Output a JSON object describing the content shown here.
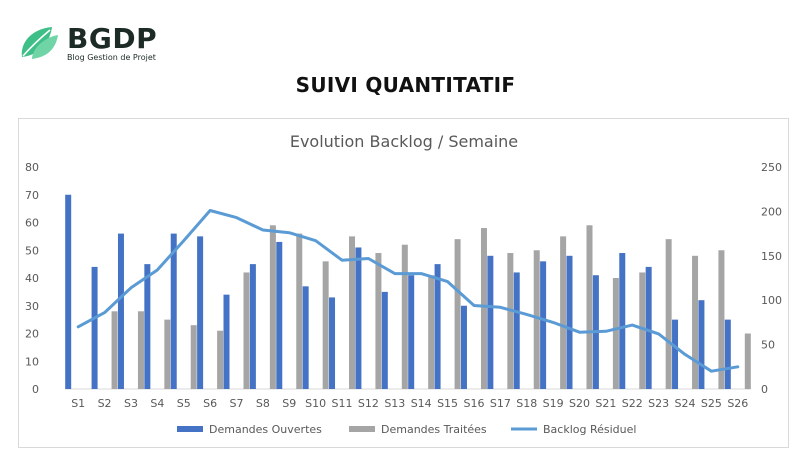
{
  "header": {
    "brand_name": "BGDP",
    "brand_tagline": "Blog Gestion de Projet",
    "brand_color": "#3fbf88",
    "logo_icon": "leaf-icon",
    "page_title": "SUIVI QUANTITATIF"
  },
  "chart_data": {
    "type": "bar",
    "title": "Evolution Backlog / Semaine",
    "categories": [
      "S1",
      "S2",
      "S3",
      "S4",
      "S5",
      "S6",
      "S7",
      "S8",
      "S9",
      "S10",
      "S11",
      "S12",
      "S13",
      "S14",
      "S15",
      "S16",
      "S17",
      "S18",
      "S19",
      "S20",
      "S21",
      "S22",
      "S23",
      "S24",
      "S25",
      "S26"
    ],
    "ylim": [
      0,
      80
    ],
    "yticks": [
      "0",
      "10",
      "20",
      "30",
      "40",
      "50",
      "60",
      "70",
      "80"
    ],
    "y2lim": [
      0,
      250
    ],
    "y2ticks": [
      "0",
      "50",
      "100",
      "150",
      "200",
      "250"
    ],
    "grid": false,
    "legend_position": "bottom",
    "series": [
      {
        "name": "Demandes Ouvertes",
        "type": "bar",
        "axis": "left",
        "color": "#4472c4",
        "values": [
          70,
          44,
          56,
          45,
          56,
          55,
          34,
          45,
          53,
          37,
          33,
          51,
          35,
          41,
          45,
          30,
          48,
          42,
          46,
          48,
          41,
          49,
          44,
          25,
          32,
          25
        ]
      },
      {
        "name": "Demandes Traitées",
        "type": "bar",
        "axis": "left",
        "color": "#a5a5a5",
        "values": [
          0,
          28,
          28,
          25,
          23,
          21,
          42,
          59,
          56,
          46,
          55,
          49,
          52,
          41,
          54,
          58,
          49,
          50,
          55,
          59,
          40,
          42,
          54,
          48,
          50,
          20
        ]
      },
      {
        "name": "Backlog Résiduel",
        "type": "line",
        "axis": "right",
        "color": "#5b9bd5",
        "values": [
          70,
          86,
          114,
          134,
          167,
          201,
          193,
          179,
          176,
          167,
          145,
          147,
          130,
          130,
          121,
          94,
          92,
          84,
          75,
          64,
          65,
          72,
          62,
          39,
          20,
          25
        ]
      }
    ]
  }
}
